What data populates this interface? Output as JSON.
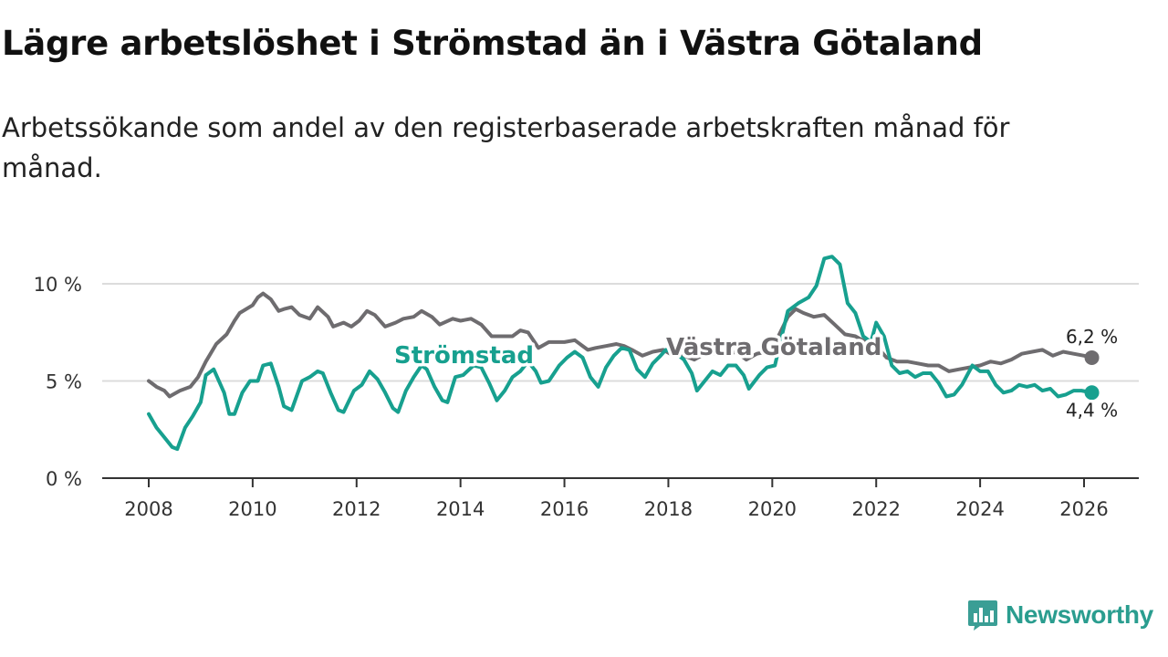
{
  "title": "Lägre arbetslöshet i Strömstad än i Västra Götaland",
  "subtitle": "Arbetssökande som andel av den registerbaserade arbetskraften månad för månad.",
  "brand": {
    "name": "Newsworthy",
    "color": "#3a9e95",
    "icon": "bar-chart-icon"
  },
  "chart_data": {
    "type": "line",
    "ylim": [
      0,
      10
    ],
    "xlim": [
      2007.6,
      2026.6
    ],
    "yticks": [
      {
        "value": 0,
        "label": "0 %"
      },
      {
        "value": 5,
        "label": "5 %"
      },
      {
        "value": 10,
        "label": "10 %"
      }
    ],
    "xticks": [
      {
        "value": 2008,
        "label": "2008"
      },
      {
        "value": 2010,
        "label": "2010"
      },
      {
        "value": 2012,
        "label": "2012"
      },
      {
        "value": 2014,
        "label": "2014"
      },
      {
        "value": 2016,
        "label": "2016"
      },
      {
        "value": 2018,
        "label": "2018"
      },
      {
        "value": 2020,
        "label": "2020"
      },
      {
        "value": 2022,
        "label": "2022"
      },
      {
        "value": 2024,
        "label": "2024"
      },
      {
        "value": 2026,
        "label": "2026"
      }
    ],
    "grid": true,
    "series": [
      {
        "name": "Västra Götaland",
        "color": "#6e6c6f",
        "end_label": "6,2 %",
        "points": [
          [
            2008.0,
            5.0
          ],
          [
            2008.15,
            4.7
          ],
          [
            2008.3,
            4.5
          ],
          [
            2008.4,
            4.2
          ],
          [
            2008.6,
            4.5
          ],
          [
            2008.8,
            4.7
          ],
          [
            2008.95,
            5.2
          ],
          [
            2009.1,
            6.0
          ],
          [
            2009.3,
            6.9
          ],
          [
            2009.5,
            7.4
          ],
          [
            2009.65,
            8.1
          ],
          [
            2009.75,
            8.5
          ],
          [
            2010.0,
            8.9
          ],
          [
            2010.1,
            9.3
          ],
          [
            2010.2,
            9.5
          ],
          [
            2010.35,
            9.2
          ],
          [
            2010.5,
            8.6
          ],
          [
            2010.6,
            8.7
          ],
          [
            2010.75,
            8.8
          ],
          [
            2010.9,
            8.4
          ],
          [
            2011.1,
            8.2
          ],
          [
            2011.25,
            8.8
          ],
          [
            2011.45,
            8.3
          ],
          [
            2011.55,
            7.8
          ],
          [
            2011.75,
            8.0
          ],
          [
            2011.9,
            7.8
          ],
          [
            2012.05,
            8.1
          ],
          [
            2012.2,
            8.6
          ],
          [
            2012.35,
            8.4
          ],
          [
            2012.55,
            7.8
          ],
          [
            2012.75,
            8.0
          ],
          [
            2012.9,
            8.2
          ],
          [
            2013.1,
            8.3
          ],
          [
            2013.25,
            8.6
          ],
          [
            2013.45,
            8.3
          ],
          [
            2013.6,
            7.9
          ],
          [
            2013.85,
            8.2
          ],
          [
            2014.0,
            8.1
          ],
          [
            2014.2,
            8.2
          ],
          [
            2014.4,
            7.9
          ],
          [
            2014.6,
            7.3
          ],
          [
            2014.8,
            7.3
          ],
          [
            2015.0,
            7.3
          ],
          [
            2015.15,
            7.6
          ],
          [
            2015.3,
            7.5
          ],
          [
            2015.5,
            6.7
          ],
          [
            2015.7,
            7.0
          ],
          [
            2016.0,
            7.0
          ],
          [
            2016.2,
            7.1
          ],
          [
            2016.45,
            6.6
          ],
          [
            2016.6,
            6.7
          ],
          [
            2016.8,
            6.8
          ],
          [
            2017.0,
            6.9
          ],
          [
            2017.15,
            6.8
          ],
          [
            2017.3,
            6.6
          ],
          [
            2017.5,
            6.3
          ],
          [
            2017.7,
            6.5
          ],
          [
            2017.9,
            6.6
          ],
          [
            2018.1,
            6.3
          ],
          [
            2018.3,
            6.3
          ],
          [
            2018.5,
            6.1
          ],
          [
            2018.7,
            6.4
          ],
          [
            2018.9,
            6.4
          ],
          [
            2019.1,
            6.3
          ],
          [
            2019.3,
            6.5
          ],
          [
            2019.5,
            6.1
          ],
          [
            2019.7,
            6.4
          ],
          [
            2019.9,
            6.5
          ],
          [
            2020.1,
            7.2
          ],
          [
            2020.3,
            8.3
          ],
          [
            2020.45,
            8.7
          ],
          [
            2020.6,
            8.5
          ],
          [
            2020.8,
            8.3
          ],
          [
            2021.0,
            8.4
          ],
          [
            2021.2,
            7.9
          ],
          [
            2021.4,
            7.4
          ],
          [
            2021.6,
            7.3
          ],
          [
            2021.8,
            7.0
          ],
          [
            2022.0,
            6.8
          ],
          [
            2022.2,
            6.2
          ],
          [
            2022.4,
            6.0
          ],
          [
            2022.6,
            6.0
          ],
          [
            2022.8,
            5.9
          ],
          [
            2023.0,
            5.8
          ],
          [
            2023.2,
            5.8
          ],
          [
            2023.4,
            5.5
          ],
          [
            2023.6,
            5.6
          ],
          [
            2023.8,
            5.7
          ],
          [
            2024.0,
            5.8
          ],
          [
            2024.2,
            6.0
          ],
          [
            2024.4,
            5.9
          ],
          [
            2024.6,
            6.1
          ],
          [
            2024.8,
            6.4
          ],
          [
            2025.0,
            6.5
          ],
          [
            2025.2,
            6.6
          ],
          [
            2025.4,
            6.3
          ],
          [
            2025.6,
            6.5
          ],
          [
            2025.8,
            6.4
          ],
          [
            2026.0,
            6.3
          ],
          [
            2026.15,
            6.2
          ]
        ]
      },
      {
        "name": "Strömstad",
        "color": "#17a08f",
        "end_label": "4,4 %",
        "points": [
          [
            2008.0,
            3.3
          ],
          [
            2008.15,
            2.6
          ],
          [
            2008.3,
            2.1
          ],
          [
            2008.45,
            1.6
          ],
          [
            2008.55,
            1.5
          ],
          [
            2008.7,
            2.6
          ],
          [
            2008.85,
            3.2
          ],
          [
            2009.0,
            3.9
          ],
          [
            2009.1,
            5.3
          ],
          [
            2009.25,
            5.6
          ],
          [
            2009.45,
            4.4
          ],
          [
            2009.55,
            3.3
          ],
          [
            2009.65,
            3.3
          ],
          [
            2009.8,
            4.4
          ],
          [
            2009.95,
            5.0
          ],
          [
            2010.1,
            5.0
          ],
          [
            2010.2,
            5.8
          ],
          [
            2010.35,
            5.9
          ],
          [
            2010.5,
            4.7
          ],
          [
            2010.6,
            3.7
          ],
          [
            2010.75,
            3.5
          ],
          [
            2010.95,
            5.0
          ],
          [
            2011.1,
            5.2
          ],
          [
            2011.25,
            5.5
          ],
          [
            2011.35,
            5.4
          ],
          [
            2011.5,
            4.4
          ],
          [
            2011.65,
            3.5
          ],
          [
            2011.75,
            3.4
          ],
          [
            2011.95,
            4.5
          ],
          [
            2012.1,
            4.8
          ],
          [
            2012.25,
            5.5
          ],
          [
            2012.4,
            5.1
          ],
          [
            2012.55,
            4.4
          ],
          [
            2012.7,
            3.6
          ],
          [
            2012.8,
            3.4
          ],
          [
            2012.95,
            4.5
          ],
          [
            2013.1,
            5.2
          ],
          [
            2013.25,
            5.8
          ],
          [
            2013.35,
            5.6
          ],
          [
            2013.5,
            4.7
          ],
          [
            2013.65,
            4.0
          ],
          [
            2013.75,
            3.9
          ],
          [
            2013.9,
            5.2
          ],
          [
            2014.05,
            5.3
          ],
          [
            2014.25,
            5.8
          ],
          [
            2014.4,
            5.7
          ],
          [
            2014.55,
            4.9
          ],
          [
            2014.7,
            4.0
          ],
          [
            2014.85,
            4.5
          ],
          [
            2015.0,
            5.2
          ],
          [
            2015.15,
            5.5
          ],
          [
            2015.3,
            6.0
          ],
          [
            2015.45,
            5.5
          ],
          [
            2015.55,
            4.9
          ],
          [
            2015.7,
            5.0
          ],
          [
            2015.9,
            5.8
          ],
          [
            2016.05,
            6.2
          ],
          [
            2016.2,
            6.5
          ],
          [
            2016.35,
            6.2
          ],
          [
            2016.5,
            5.2
          ],
          [
            2016.65,
            4.7
          ],
          [
            2016.8,
            5.7
          ],
          [
            2016.95,
            6.3
          ],
          [
            2017.1,
            6.7
          ],
          [
            2017.25,
            6.6
          ],
          [
            2017.4,
            5.6
          ],
          [
            2017.55,
            5.2
          ],
          [
            2017.7,
            5.9
          ],
          [
            2017.85,
            6.3
          ],
          [
            2017.95,
            6.6
          ],
          [
            2018.15,
            6.4
          ],
          [
            2018.3,
            6.1
          ],
          [
            2018.45,
            5.4
          ],
          [
            2018.55,
            4.5
          ],
          [
            2018.7,
            5.0
          ],
          [
            2018.85,
            5.5
          ],
          [
            2019.0,
            5.3
          ],
          [
            2019.15,
            5.8
          ],
          [
            2019.3,
            5.8
          ],
          [
            2019.45,
            5.3
          ],
          [
            2019.55,
            4.6
          ],
          [
            2019.75,
            5.3
          ],
          [
            2019.9,
            5.7
          ],
          [
            2020.05,
            5.8
          ],
          [
            2020.2,
            7.5
          ],
          [
            2020.3,
            8.6
          ],
          [
            2020.5,
            9.0
          ],
          [
            2020.7,
            9.3
          ],
          [
            2020.85,
            9.9
          ],
          [
            2021.0,
            11.3
          ],
          [
            2021.15,
            11.4
          ],
          [
            2021.3,
            11.0
          ],
          [
            2021.45,
            9.0
          ],
          [
            2021.6,
            8.5
          ],
          [
            2021.75,
            7.3
          ],
          [
            2021.9,
            7.0
          ],
          [
            2022.0,
            8.0
          ],
          [
            2022.15,
            7.3
          ],
          [
            2022.3,
            5.8
          ],
          [
            2022.45,
            5.4
          ],
          [
            2022.6,
            5.5
          ],
          [
            2022.75,
            5.2
          ],
          [
            2022.9,
            5.4
          ],
          [
            2023.05,
            5.4
          ],
          [
            2023.2,
            4.9
          ],
          [
            2023.35,
            4.2
          ],
          [
            2023.5,
            4.3
          ],
          [
            2023.65,
            4.8
          ],
          [
            2023.85,
            5.8
          ],
          [
            2024.0,
            5.5
          ],
          [
            2024.15,
            5.5
          ],
          [
            2024.3,
            4.8
          ],
          [
            2024.45,
            4.4
          ],
          [
            2024.6,
            4.5
          ],
          [
            2024.75,
            4.8
          ],
          [
            2024.9,
            4.7
          ],
          [
            2025.05,
            4.8
          ],
          [
            2025.2,
            4.5
          ],
          [
            2025.35,
            4.6
          ],
          [
            2025.5,
            4.2
          ],
          [
            2025.65,
            4.3
          ],
          [
            2025.8,
            4.5
          ],
          [
            2025.95,
            4.5
          ],
          [
            2026.15,
            4.4
          ]
        ]
      }
    ]
  }
}
